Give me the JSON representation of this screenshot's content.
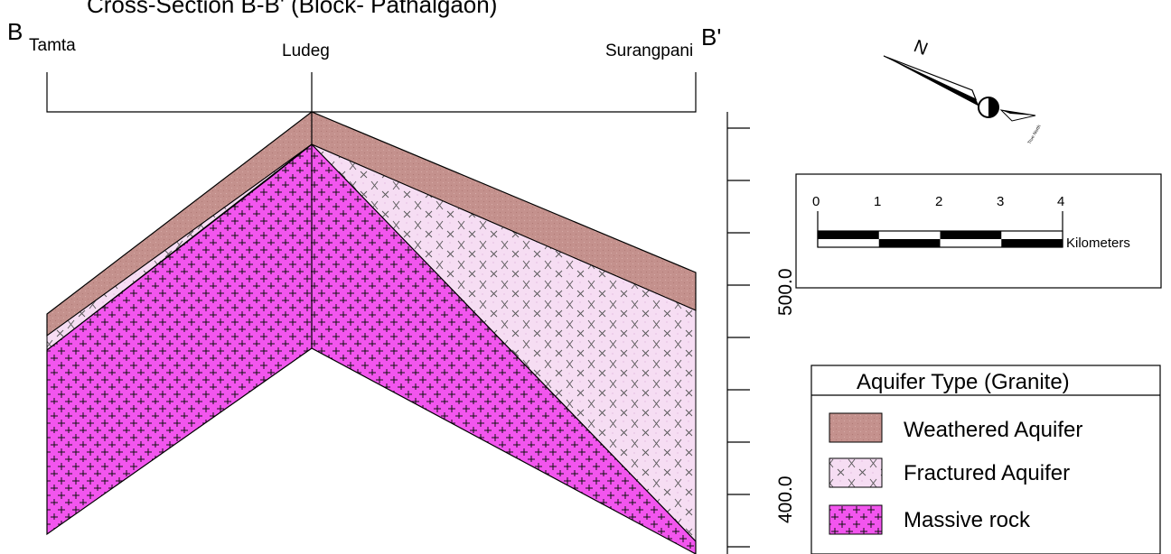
{
  "title": "Cross-Section B-B' (Block- Pathalgaon)",
  "section": {
    "start_label": "B",
    "end_label": "B'",
    "locations": [
      "Tamta",
      "Ludeg",
      "Surangpani"
    ]
  },
  "elevation_axis": {
    "tick_labels": [
      "500.0",
      "400.0"
    ]
  },
  "north_arrow": {
    "label": "N",
    "true_north_label": "True North"
  },
  "scale_bar": {
    "ticks": [
      "0",
      "1",
      "2",
      "3",
      "4"
    ],
    "unit": "Kilometers"
  },
  "legend": {
    "title": "Aquifer Type (Granite)",
    "items": [
      {
        "label": "Weathered Aquifer",
        "color": "#c4918d"
      },
      {
        "label": "Fractured Aquifer",
        "color": "#f6ddf3"
      },
      {
        "label": "Massive rock",
        "color": "#f255ee"
      }
    ]
  }
}
